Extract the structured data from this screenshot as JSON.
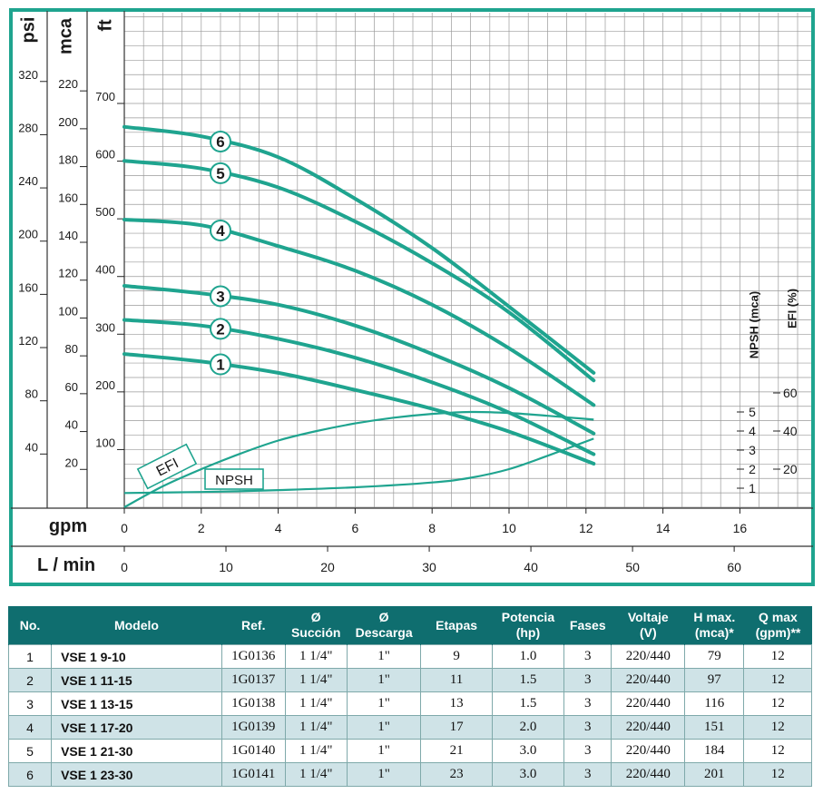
{
  "chart_data": {
    "type": "line",
    "colors": {
      "curve": "#1fa48f",
      "frame": "#1fa48f",
      "grid": "#9a9a9a",
      "axis": "#1a1a1a"
    },
    "unit_labels": {
      "psi": "psi",
      "mca": "mca",
      "ft": "ft",
      "gpm": "gpm",
      "lmin": "L / min",
      "npsh": "NPSH (mca)",
      "efi": "EFI (%)"
    },
    "x_axes": {
      "gpm": {
        "range": [
          0,
          16
        ],
        "ticks": [
          "0",
          "2",
          "4",
          "6",
          "8",
          "10",
          "12",
          "14",
          "16"
        ]
      },
      "lmin": {
        "range": [
          0,
          60
        ],
        "ticks": [
          "0",
          "10",
          "20",
          "30",
          "40",
          "50",
          "60"
        ]
      }
    },
    "y_axes": {
      "psi": {
        "ticks": [
          "40",
          "80",
          "120",
          "160",
          "200",
          "240",
          "280",
          "320"
        ]
      },
      "mca": {
        "ticks": [
          "20",
          "40",
          "60",
          "80",
          "100",
          "120",
          "140",
          "160",
          "180",
          "200",
          "220"
        ]
      },
      "ft": {
        "range": [
          0,
          700
        ],
        "ticks": [
          "100",
          "200",
          "300",
          "400",
          "500",
          "600",
          "700"
        ]
      },
      "npsh": {
        "ticks": [
          "1",
          "2",
          "3",
          "4",
          "5"
        ]
      },
      "efi": {
        "ticks": [
          "20",
          "40",
          "60"
        ]
      }
    },
    "series": [
      {
        "name": "1",
        "x": [
          0,
          2,
          4,
          6,
          8,
          10,
          12.2
        ],
        "y": [
          81,
          77,
          71,
          62,
          52,
          40,
          23
        ]
      },
      {
        "name": "2",
        "x": [
          0,
          2,
          4,
          6,
          8,
          10,
          12.2
        ],
        "y": [
          99,
          96,
          89,
          79,
          66,
          50,
          28
        ]
      },
      {
        "name": "3",
        "x": [
          0,
          2,
          4,
          6,
          8,
          10,
          12.2
        ],
        "y": [
          117,
          113,
          107,
          96,
          81,
          63,
          39
        ]
      },
      {
        "name": "4",
        "x": [
          0,
          2,
          4,
          6,
          8,
          10,
          12.2
        ],
        "y": [
          152,
          149,
          138,
          125,
          107,
          84,
          54
        ]
      },
      {
        "name": "5",
        "x": [
          0,
          2,
          4,
          6,
          8,
          10,
          12.2
        ],
        "y": [
          183,
          179,
          169,
          151,
          129,
          103,
          67
        ]
      },
      {
        "name": "6",
        "x": [
          0,
          2,
          4,
          6,
          8,
          10,
          12.2
        ],
        "y": [
          201,
          196,
          185,
          163,
          137,
          106,
          71
        ]
      }
    ],
    "efi_curve": {
      "label": "EFI",
      "x": [
        0,
        1,
        2,
        3,
        4,
        5,
        6,
        7,
        8,
        9,
        10,
        11,
        12.2
      ],
      "y_percent": [
        0,
        11,
        20,
        28,
        35,
        40,
        44,
        47,
        49,
        50,
        49.5,
        48,
        46
      ]
    },
    "npsh_curve": {
      "label": "NPSH",
      "x": [
        0,
        2,
        4,
        6,
        8,
        9,
        10,
        11,
        12.2
      ],
      "y_mca": [
        0.75,
        0.8,
        0.9,
        1.05,
        1.3,
        1.55,
        2.0,
        2.7,
        3.6
      ]
    }
  },
  "table": {
    "headers": [
      "No.",
      "Modelo",
      "Ref.",
      "Ø\nSucción",
      "Ø\nDescarga",
      "Etapas",
      "Potencia\n(hp)",
      "Fases",
      "Voltaje\n(V)",
      "H max.\n(mca)*",
      "Q max\n(gpm)**"
    ],
    "rows": [
      [
        "1",
        "VSE 1 9-10",
        "1G0136",
        "1 1/4\"",
        "1\"",
        "9",
        "1.0",
        "3",
        "220/440",
        "79",
        "12"
      ],
      [
        "2",
        "VSE 1 11-15",
        "1G0137",
        "1 1/4\"",
        "1\"",
        "11",
        "1.5",
        "3",
        "220/440",
        "97",
        "12"
      ],
      [
        "3",
        "VSE 1 13-15",
        "1G0138",
        "1 1/4\"",
        "1\"",
        "13",
        "1.5",
        "3",
        "220/440",
        "116",
        "12"
      ],
      [
        "4",
        "VSE 1 17-20",
        "1G0139",
        "1 1/4\"",
        "1\"",
        "17",
        "2.0",
        "3",
        "220/440",
        "151",
        "12"
      ],
      [
        "5",
        "VSE 1 21-30",
        "1G0140",
        "1 1/4\"",
        "1\"",
        "21",
        "3.0",
        "3",
        "220/440",
        "184",
        "12"
      ],
      [
        "6",
        "VSE 1 23-30",
        "1G0141",
        "1 1/4\"",
        "1\"",
        "23",
        "3.0",
        "3",
        "220/440",
        "201",
        "12"
      ]
    ]
  }
}
